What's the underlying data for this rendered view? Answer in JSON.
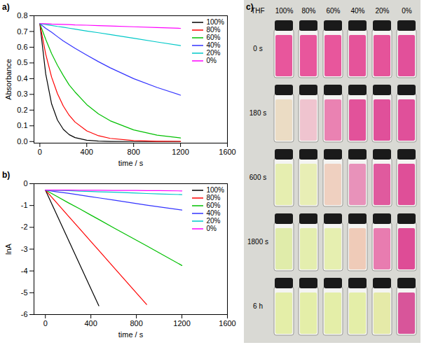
{
  "chart_data": [
    {
      "type": "line",
      "title": "a)",
      "x_label": "time / s",
      "y_label": "Absorbance",
      "x": [
        0,
        50,
        100,
        150,
        200,
        250,
        300,
        400,
        500,
        600,
        800,
        1000,
        1200
      ],
      "series": [
        {
          "name": "100%",
          "color": "#000000",
          "values": [
            0.75,
            0.43,
            0.24,
            0.137,
            0.078,
            0.044,
            0.025,
            0.008,
            0.003,
            0.001,
            0.0,
            0.0,
            0.0
          ]
        },
        {
          "name": "80%",
          "color": "#ff0000",
          "values": [
            0.75,
            0.556,
            0.41,
            0.305,
            0.226,
            0.167,
            0.124,
            0.068,
            0.037,
            0.02,
            0.006,
            0.002,
            0.001
          ]
        },
        {
          "name": "60%",
          "color": "#00c000",
          "values": [
            0.75,
            0.65,
            0.56,
            0.485,
            0.42,
            0.36,
            0.315,
            0.235,
            0.176,
            0.132,
            0.074,
            0.041,
            0.023
          ]
        },
        {
          "name": "40%",
          "color": "#3333ff",
          "values": [
            0.75,
            0.72,
            0.695,
            0.667,
            0.64,
            0.616,
            0.593,
            0.55,
            0.508,
            0.469,
            0.4,
            0.344,
            0.295
          ]
        },
        {
          "name": "20%",
          "color": "#00c8c8",
          "values": [
            0.75,
            0.744,
            0.738,
            0.732,
            0.727,
            0.721,
            0.715,
            0.703,
            0.692,
            0.68,
            0.657,
            0.633,
            0.61
          ]
        },
        {
          "name": "0%",
          "color": "#ff00ff",
          "values": [
            0.75,
            0.749,
            0.747,
            0.746,
            0.745,
            0.744,
            0.742,
            0.74,
            0.737,
            0.735,
            0.73,
            0.725,
            0.72
          ]
        }
      ],
      "xlim": [
        -50,
        1600
      ],
      "xticks": [
        0,
        400,
        800,
        1200,
        1600
      ],
      "ylim": [
        -0.01,
        0.8
      ],
      "yticks": [
        {
          "value": 0,
          "label": "0.0"
        },
        {
          "value": 0.1,
          "label": "0.1"
        },
        {
          "value": 0.2,
          "label": "0.2"
        },
        {
          "value": 0.3,
          "label": "0.3"
        },
        {
          "value": 0.4,
          "label": "0.4"
        },
        {
          "value": 0.5,
          "label": "0.5"
        },
        {
          "value": 0.6,
          "label": "0.6"
        },
        {
          "value": 0.7,
          "label": "0.7"
        },
        {
          "value": 0.8,
          "label": "0.8"
        }
      ],
      "grid": false,
      "legend": "upper right"
    },
    {
      "type": "line",
      "title": "b)",
      "x_label": "time / s",
      "y_label": "lnA",
      "x": [
        0,
        100,
        200,
        300,
        400,
        470,
        600,
        800,
        890,
        1000,
        1200
      ],
      "series": [
        {
          "name": "100%",
          "color": "#000000",
          "values": [
            -0.29,
            -1.42,
            -2.55,
            -3.68,
            -4.81,
            -5.6,
            null,
            null,
            null,
            null,
            null
          ]
        },
        {
          "name": "80%",
          "color": "#ff0000",
          "values": [
            -0.29,
            -0.88,
            -1.47,
            -2.06,
            -2.65,
            -3.06,
            -3.83,
            -5.01,
            -5.54,
            null,
            null
          ]
        },
        {
          "name": "60%",
          "color": "#00c000",
          "values": [
            -0.29,
            -0.58,
            -0.87,
            -1.15,
            -1.44,
            -1.64,
            -2.02,
            -2.59,
            -2.85,
            -3.17,
            -3.75
          ]
        },
        {
          "name": "40%",
          "color": "#3333ff",
          "values": [
            -0.29,
            -0.37,
            -0.44,
            -0.52,
            -0.6,
            -0.65,
            -0.75,
            -0.91,
            -0.98,
            -1.06,
            -1.21
          ]
        },
        {
          "name": "20%",
          "color": "#00c8c8",
          "values": [
            -0.29,
            -0.31,
            -0.32,
            -0.34,
            -0.36,
            -0.37,
            -0.39,
            -0.43,
            -0.45,
            -0.47,
            -0.5
          ]
        },
        {
          "name": "0%",
          "color": "#ff00ff",
          "values": [
            -0.29,
            -0.29,
            -0.29,
            -0.3,
            -0.3,
            -0.3,
            -0.31,
            -0.31,
            -0.32,
            -0.32,
            -0.33
          ]
        }
      ],
      "xlim": [
        -100,
        1600
      ],
      "xticks": [
        0,
        400,
        800,
        1200,
        1600
      ],
      "ylim": [
        -6,
        0
      ],
      "yticks": [
        -6,
        -5,
        -4,
        -3,
        -2,
        -1,
        0
      ],
      "grid": false,
      "legend": "upper right"
    }
  ],
  "photo": {
    "title": "c)",
    "header": "THF",
    "columns": [
      "100%",
      "80%",
      "60%",
      "40%",
      "20%",
      "0%"
    ],
    "rows": [
      {
        "label": "0 s",
        "colors": [
          "#e8569c",
          "#e8569c",
          "#e8569c",
          "#e5539a",
          "#e5539a",
          "#e2509a"
        ]
      },
      {
        "label": "180 s",
        "colors": [
          "#ebdcc4",
          "#efc4cf",
          "#ea82b2",
          "#e2529a",
          "#e0509a",
          "#e0509a"
        ]
      },
      {
        "label": "600 s",
        "colors": [
          "#e6eeb0",
          "#e8eeb5",
          "#efd0c0",
          "#e892ba",
          "#e05a9e",
          "#df4f98"
        ]
      },
      {
        "label": "1800 s",
        "colors": [
          "#e0ecaa",
          "#e4eeae",
          "#e6efb0",
          "#efcbb8",
          "#e87cb0",
          "#de4c96"
        ]
      },
      {
        "label": "6 h",
        "colors": [
          "#e4eea8",
          "#e4eea8",
          "#e4eea8",
          "#e4eea8",
          "#e5eaa8",
          "#d8559a"
        ]
      }
    ]
  }
}
